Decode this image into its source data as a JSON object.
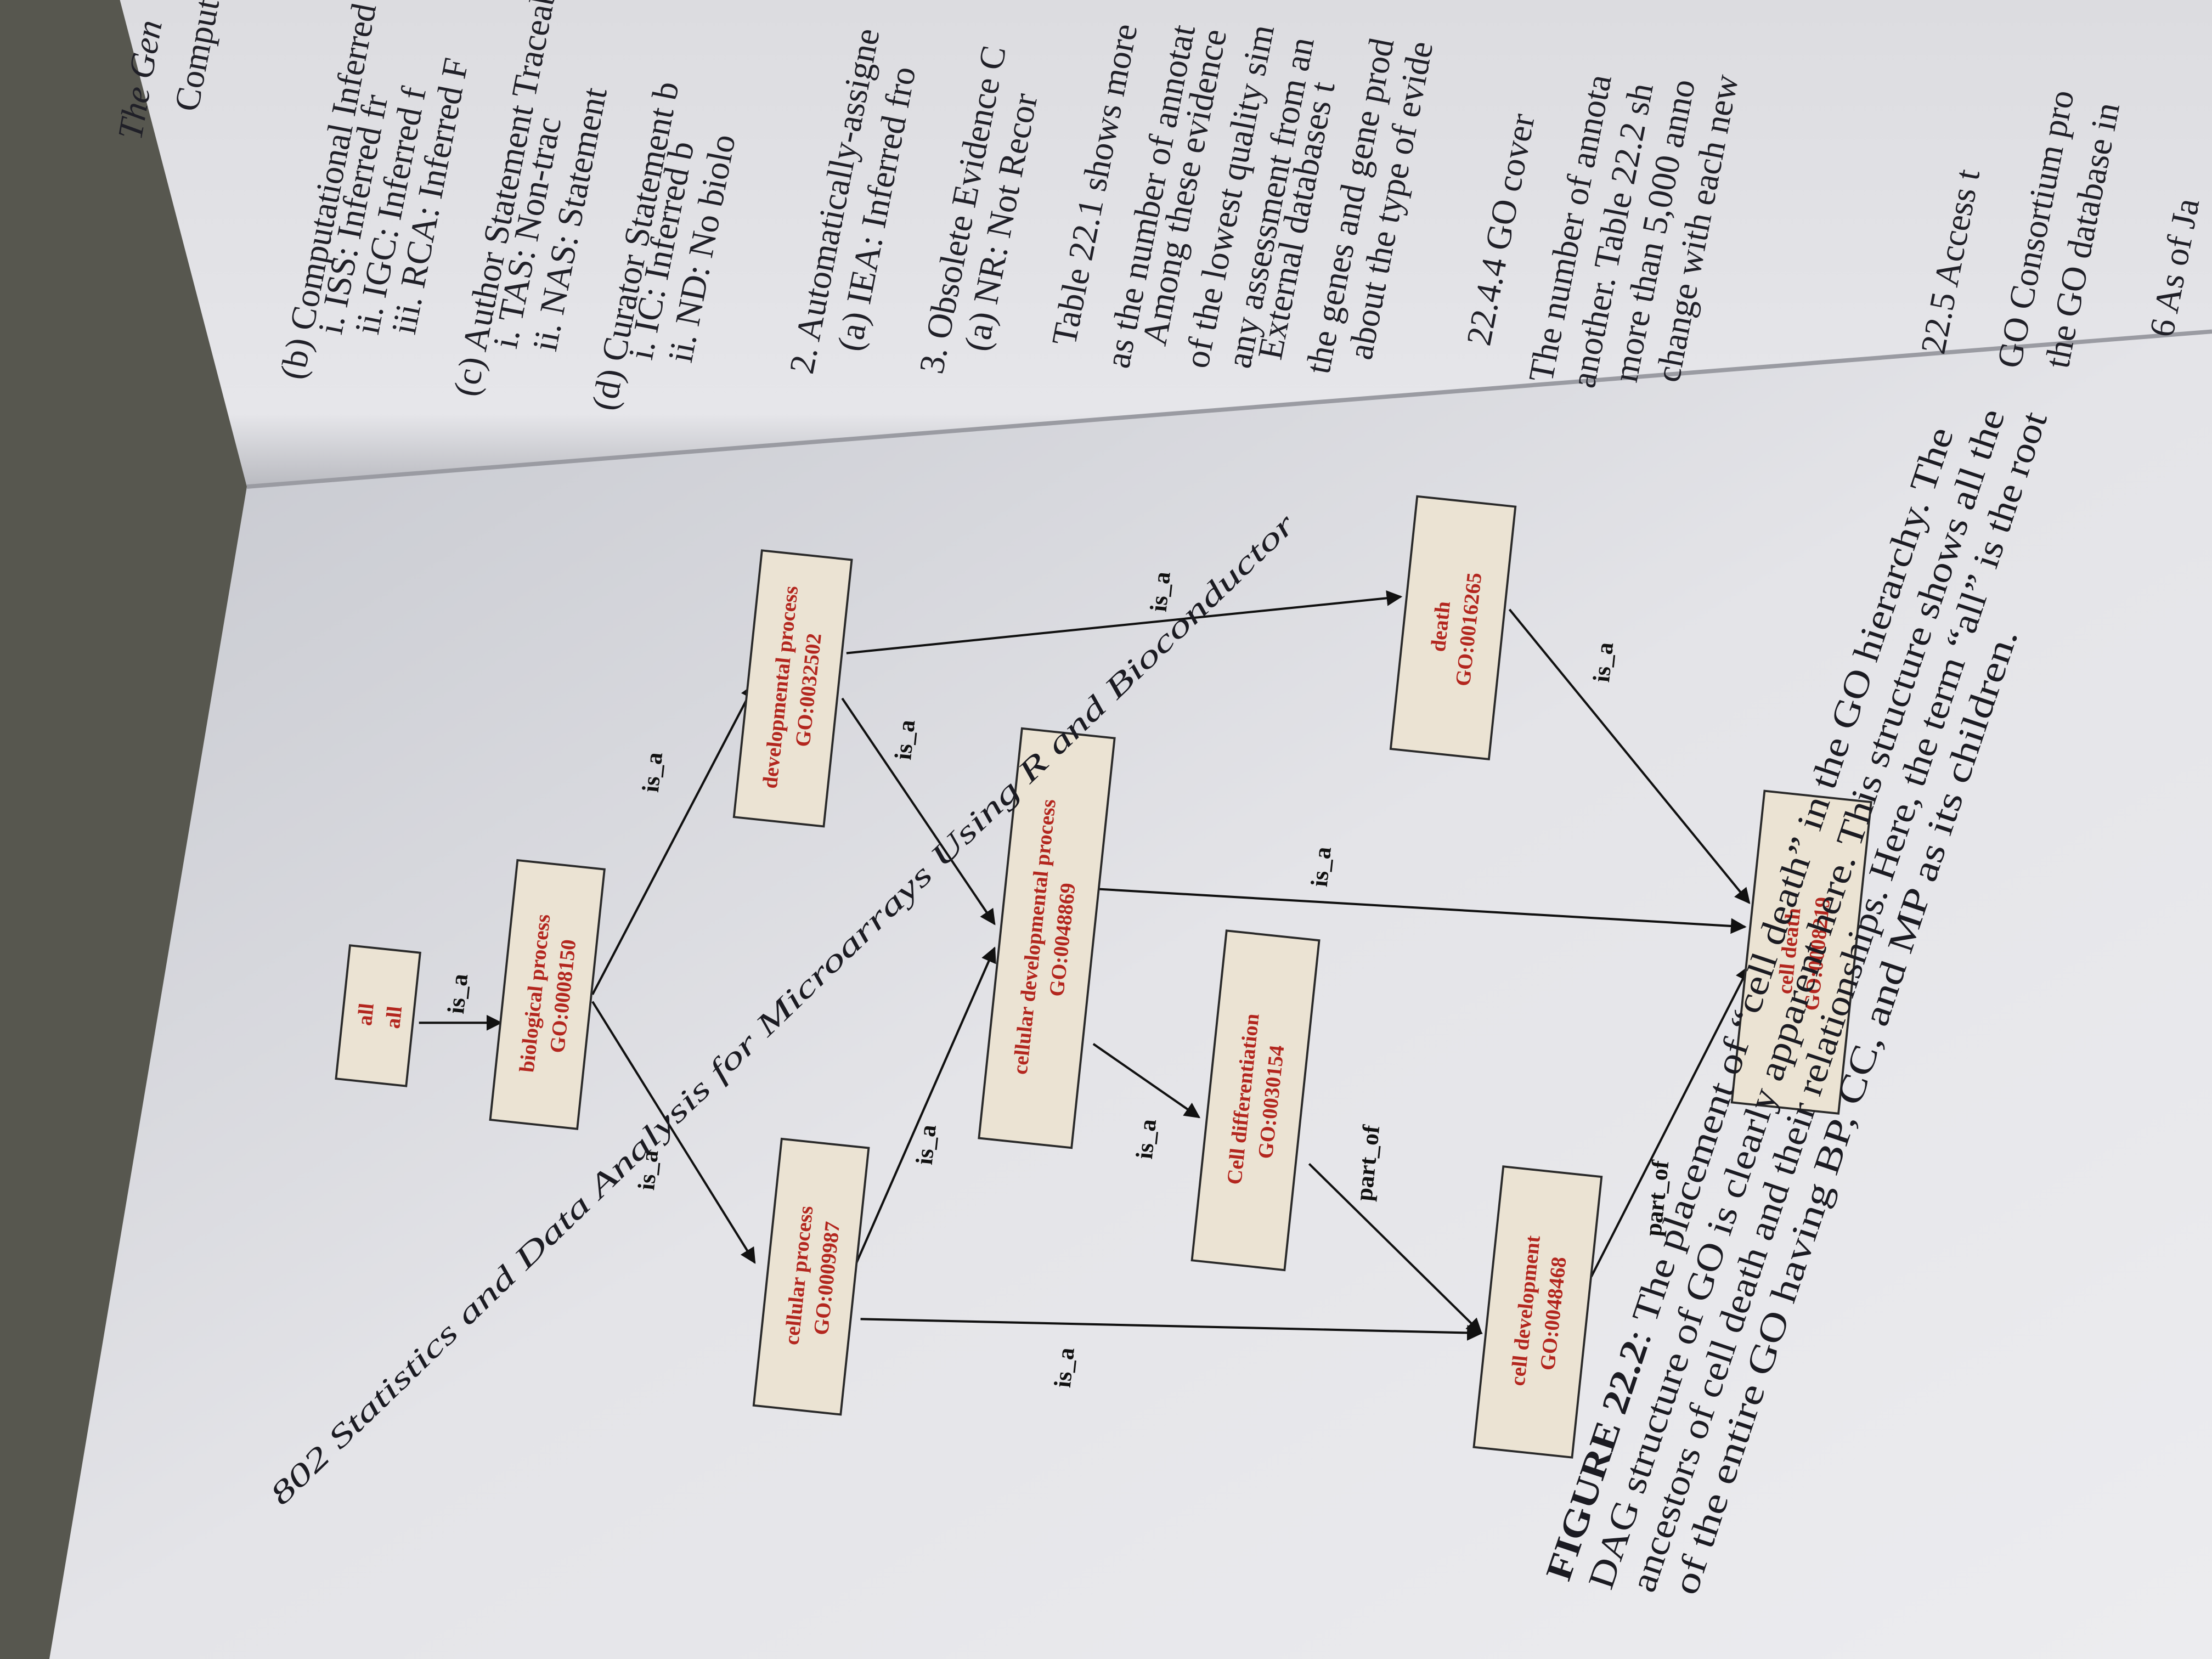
{
  "header": "802 Statistics and Data Analysis for Microarrays Using R and Bioconductor",
  "figure": {
    "nodes": [
      {
        "name": "all",
        "id": "all"
      },
      {
        "name": "biological process",
        "id": "GO:0008150"
      },
      {
        "name": "cellular process",
        "id": "GO:0009987"
      },
      {
        "name": "developmental process",
        "id": "GO:0032502"
      },
      {
        "name": "cellular developmental process",
        "id": "GO:0048869"
      },
      {
        "name": "Cell differentiation",
        "id": "GO:0030154"
      },
      {
        "name": "cell development",
        "id": "GO:0048468"
      },
      {
        "name": "death",
        "id": "GO:0016265"
      },
      {
        "name": "cell death",
        "id": "GO:0008219"
      }
    ],
    "edges": [
      {
        "label": "is_a"
      },
      {
        "label": "is_a"
      },
      {
        "label": "is_a"
      },
      {
        "label": "is_a"
      },
      {
        "label": "is_a"
      },
      {
        "label": "is_a"
      },
      {
        "label": "is_a"
      },
      {
        "label": "is_a"
      },
      {
        "label": "is_a"
      },
      {
        "label": "part_of"
      },
      {
        "label": "part_of"
      },
      {
        "label": "is_a"
      }
    ]
  },
  "caption": {
    "label": "FIGURE 22.2",
    "lines": [
      ": The placement of “cell death” in the GO hierarchy. The",
      "DAG structure of GO is clearly apparent here. This structure shows all the",
      "ancestors of cell death and their relationships. Here, the term “all” is the root",
      "of the entire GO having BP, CC, and MP as its children."
    ]
  },
  "right_page": {
    "running_head": "The Gen",
    "lines": [
      "Computational Analy",
      "(b) Computational Inferred fro",
      "i. ISS: Inferred fr",
      "ii. IGC: Inferred f",
      "iii. RCA: Inferred F",
      "(c) Author Statement Traceable",
      "i. TAS: Non-trac",
      "ii. NAS: Statement",
      "(d) Curator Statement b",
      "i. IC: Inferred b",
      "ii. ND: No biolo",
      "2. Automatically-assigne",
      "(a) IEA: Inferred fro",
      "3. Obsolete Evidence C",
      "(a) NR: Not Recor",
      "Table 22.1 shows more",
      "as the number of annotat",
      "Among these evidence",
      "of the lowest quality sim",
      "any assessment from an",
      "External databases t",
      "the genes and gene prod",
      "about the type of evide",
      "22.4.4 GO cover",
      "The number of annota",
      "another. Table 22.2 sh",
      "more than 5,000 anno",
      "change with each new",
      "22.5 Access t",
      "GO Consortium pro",
      "the GO database in",
      "6 As of Ja"
    ]
  }
}
